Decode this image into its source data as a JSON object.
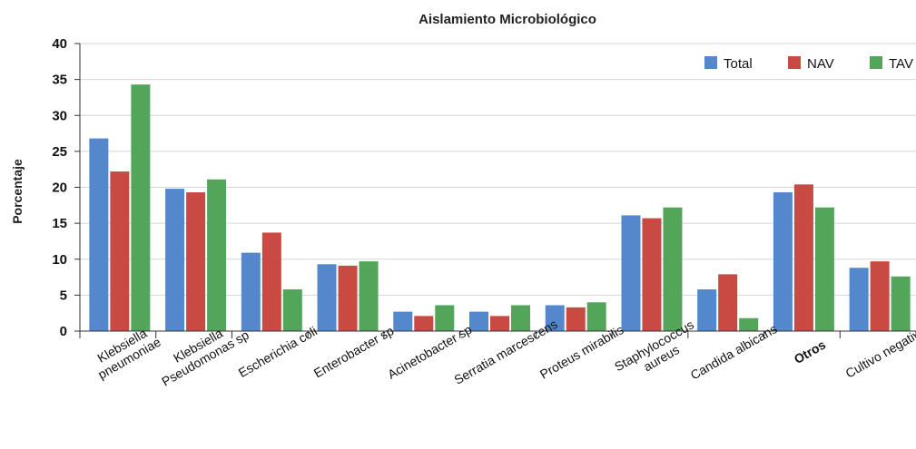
{
  "chart_data": {
    "type": "bar",
    "title": "Aislamiento Microbiológico",
    "xlabel": "",
    "ylabel": "Porcentaje",
    "ylim": [
      0,
      40
    ],
    "yticks": [
      0,
      5,
      10,
      15,
      20,
      25,
      30,
      35,
      40
    ],
    "grid": true,
    "legend_position": "top-right",
    "categories": [
      "Klebsiella pneumoniae",
      "Klebsiella Pseudomonas sp",
      "Escherichia coli",
      "Enterobacter sp",
      "Acinetobacter sp",
      "Serratia marcescens",
      "Proteus mirabilis",
      "Staphylococcus aureus",
      "Candida albicans",
      "Otros",
      "Cultivo negativo"
    ],
    "bold_categories": [
      "Otros"
    ],
    "series": [
      {
        "name": "Total",
        "color": "#5388cc",
        "values": [
          26.8,
          19.8,
          10.9,
          9.3,
          2.7,
          2.7,
          3.6,
          16.1,
          5.8,
          19.3,
          8.8
        ]
      },
      {
        "name": "NAV",
        "color": "#c94a43",
        "values": [
          22.2,
          19.3,
          13.7,
          9.1,
          2.1,
          2.1,
          3.3,
          15.7,
          7.9,
          20.4,
          9.7
        ]
      },
      {
        "name": "TAV",
        "color": "#53a55a",
        "values": [
          34.3,
          21.1,
          5.8,
          9.7,
          3.6,
          3.6,
          4.0,
          17.2,
          1.8,
          17.2,
          7.6
        ]
      }
    ]
  }
}
